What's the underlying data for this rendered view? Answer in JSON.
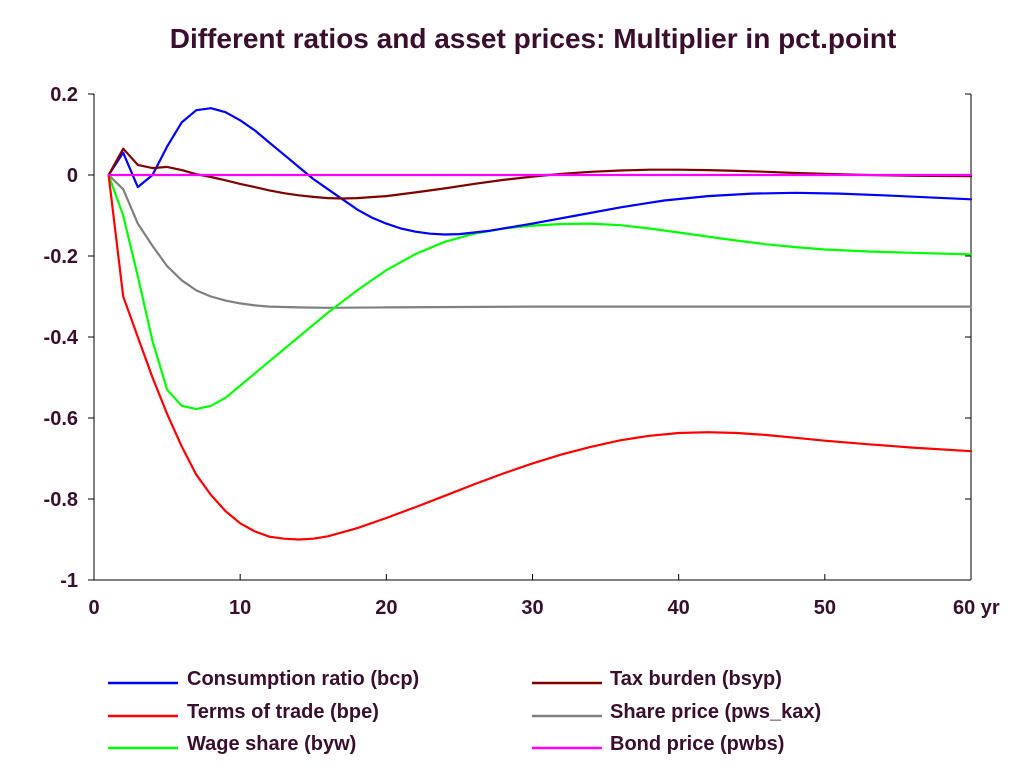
{
  "chart_data": {
    "type": "line",
    "title": "Different ratios and asset prices: Multiplier in pct.point",
    "x_unit_label": "yr",
    "xlim": [
      0,
      60
    ],
    "ylim": [
      -1,
      0.2
    ],
    "x_ticks": [
      0,
      10,
      20,
      30,
      40,
      50,
      60
    ],
    "x_tick_labels": [
      "0",
      "10",
      "20",
      "30",
      "40",
      "50",
      "60 yr"
    ],
    "y_ticks": [
      0.2,
      0,
      -0.2,
      -0.4,
      -0.6,
      -0.8,
      -1
    ],
    "y_tick_labels": [
      "0.2",
      "0",
      "-0.2",
      "-0.4",
      "-0.6",
      "-0.8",
      "-1"
    ],
    "legend_placement": "bottom",
    "series": [
      {
        "name": "Consumption ratio (bcp)",
        "color": "#0000ff",
        "points": [
          [
            1,
            0
          ],
          [
            2,
            0.055
          ],
          [
            3,
            -0.03
          ],
          [
            4,
            0.0
          ],
          [
            5,
            0.07
          ],
          [
            6,
            0.13
          ],
          [
            7,
            0.16
          ],
          [
            8,
            0.165
          ],
          [
            9,
            0.155
          ],
          [
            10,
            0.135
          ],
          [
            11,
            0.11
          ],
          [
            12,
            0.08
          ],
          [
            13,
            0.05
          ],
          [
            14,
            0.02
          ],
          [
            15,
            -0.01
          ],
          [
            16,
            -0.035
          ],
          [
            17,
            -0.06
          ],
          [
            18,
            -0.085
          ],
          [
            19,
            -0.105
          ],
          [
            20,
            -0.12
          ],
          [
            21,
            -0.132
          ],
          [
            22,
            -0.14
          ],
          [
            23,
            -0.145
          ],
          [
            24,
            -0.147
          ],
          [
            25,
            -0.146
          ],
          [
            27,
            -0.138
          ],
          [
            30,
            -0.12
          ],
          [
            33,
            -0.1
          ],
          [
            36,
            -0.08
          ],
          [
            39,
            -0.063
          ],
          [
            42,
            -0.052
          ],
          [
            45,
            -0.046
          ],
          [
            48,
            -0.044
          ],
          [
            51,
            -0.046
          ],
          [
            54,
            -0.05
          ],
          [
            57,
            -0.055
          ],
          [
            60,
            -0.06
          ]
        ]
      },
      {
        "name": "Terms of trade (bpe)",
        "color": "#ff0000",
        "points": [
          [
            1,
            0
          ],
          [
            2,
            -0.3
          ],
          [
            3,
            -0.4
          ],
          [
            4,
            -0.5
          ],
          [
            5,
            -0.59
          ],
          [
            6,
            -0.67
          ],
          [
            7,
            -0.74
          ],
          [
            8,
            -0.79
          ],
          [
            9,
            -0.83
          ],
          [
            10,
            -0.86
          ],
          [
            11,
            -0.88
          ],
          [
            12,
            -0.893
          ],
          [
            13,
            -0.898
          ],
          [
            14,
            -0.9
          ],
          [
            15,
            -0.898
          ],
          [
            16,
            -0.892
          ],
          [
            18,
            -0.872
          ],
          [
            20,
            -0.847
          ],
          [
            22,
            -0.82
          ],
          [
            24,
            -0.792
          ],
          [
            26,
            -0.764
          ],
          [
            28,
            -0.737
          ],
          [
            30,
            -0.712
          ],
          [
            32,
            -0.69
          ],
          [
            34,
            -0.671
          ],
          [
            36,
            -0.655
          ],
          [
            38,
            -0.644
          ],
          [
            40,
            -0.637
          ],
          [
            42,
            -0.635
          ],
          [
            44,
            -0.637
          ],
          [
            46,
            -0.642
          ],
          [
            48,
            -0.649
          ],
          [
            50,
            -0.656
          ],
          [
            53,
            -0.665
          ],
          [
            56,
            -0.673
          ],
          [
            60,
            -0.682
          ]
        ]
      },
      {
        "name": "Wage share (byw)",
        "color": "#00ff00",
        "points": [
          [
            1,
            0
          ],
          [
            2,
            -0.1
          ],
          [
            3,
            -0.25
          ],
          [
            4,
            -0.41
          ],
          [
            5,
            -0.53
          ],
          [
            6,
            -0.57
          ],
          [
            7,
            -0.578
          ],
          [
            8,
            -0.57
          ],
          [
            9,
            -0.55
          ],
          [
            10,
            -0.52
          ],
          [
            12,
            -0.46
          ],
          [
            14,
            -0.4
          ],
          [
            16,
            -0.34
          ],
          [
            18,
            -0.285
          ],
          [
            20,
            -0.235
          ],
          [
            22,
            -0.195
          ],
          [
            24,
            -0.165
          ],
          [
            26,
            -0.145
          ],
          [
            28,
            -0.132
          ],
          [
            30,
            -0.125
          ],
          [
            32,
            -0.121
          ],
          [
            34,
            -0.12
          ],
          [
            36,
            -0.124
          ],
          [
            38,
            -0.132
          ],
          [
            40,
            -0.142
          ],
          [
            42,
            -0.152
          ],
          [
            44,
            -0.162
          ],
          [
            46,
            -0.171
          ],
          [
            48,
            -0.178
          ],
          [
            50,
            -0.184
          ],
          [
            53,
            -0.189
          ],
          [
            56,
            -0.192
          ],
          [
            60,
            -0.196
          ]
        ]
      },
      {
        "name": "Tax burden (bsyp)",
        "color": "#800000",
        "points": [
          [
            1,
            0
          ],
          [
            2,
            0.065
          ],
          [
            3,
            0.025
          ],
          [
            4,
            0.017
          ],
          [
            5,
            0.02
          ],
          [
            6,
            0.012
          ],
          [
            7,
            0.002
          ],
          [
            8,
            -0.005
          ],
          [
            9,
            -0.013
          ],
          [
            10,
            -0.022
          ],
          [
            11,
            -0.03
          ],
          [
            12,
            -0.038
          ],
          [
            13,
            -0.045
          ],
          [
            14,
            -0.05
          ],
          [
            15,
            -0.054
          ],
          [
            16,
            -0.057
          ],
          [
            17,
            -0.058
          ],
          [
            18,
            -0.057
          ],
          [
            20,
            -0.052
          ],
          [
            22,
            -0.043
          ],
          [
            24,
            -0.033
          ],
          [
            26,
            -0.022
          ],
          [
            28,
            -0.012
          ],
          [
            30,
            -0.004
          ],
          [
            32,
            0.003
          ],
          [
            34,
            0.008
          ],
          [
            36,
            0.011
          ],
          [
            38,
            0.013
          ],
          [
            40,
            0.013
          ],
          [
            42,
            0.012
          ],
          [
            44,
            0.01
          ],
          [
            46,
            0.008
          ],
          [
            48,
            0.005
          ],
          [
            50,
            0.003
          ],
          [
            53,
            0.0
          ],
          [
            56,
            -0.002
          ],
          [
            60,
            -0.003
          ]
        ]
      },
      {
        "name": "Share price (pws_kax)",
        "color": "#808080",
        "points": [
          [
            1,
            0
          ],
          [
            2,
            -0.035
          ],
          [
            3,
            -0.12
          ],
          [
            4,
            -0.175
          ],
          [
            5,
            -0.225
          ],
          [
            6,
            -0.26
          ],
          [
            7,
            -0.285
          ],
          [
            8,
            -0.3
          ],
          [
            9,
            -0.31
          ],
          [
            10,
            -0.317
          ],
          [
            11,
            -0.322
          ],
          [
            12,
            -0.325
          ],
          [
            14,
            -0.327
          ],
          [
            16,
            -0.328
          ],
          [
            20,
            -0.327
          ],
          [
            25,
            -0.326
          ],
          [
            30,
            -0.325
          ],
          [
            35,
            -0.325
          ],
          [
            40,
            -0.325
          ],
          [
            45,
            -0.325
          ],
          [
            50,
            -0.325
          ],
          [
            55,
            -0.325
          ],
          [
            60,
            -0.325
          ]
        ]
      },
      {
        "name": "Bond price (pwbs)",
        "color": "#ff00ff",
        "points": [
          [
            1,
            0
          ],
          [
            10,
            0
          ],
          [
            20,
            0
          ],
          [
            30,
            0
          ],
          [
            40,
            0
          ],
          [
            50,
            0
          ],
          [
            60,
            0
          ]
        ]
      }
    ]
  }
}
